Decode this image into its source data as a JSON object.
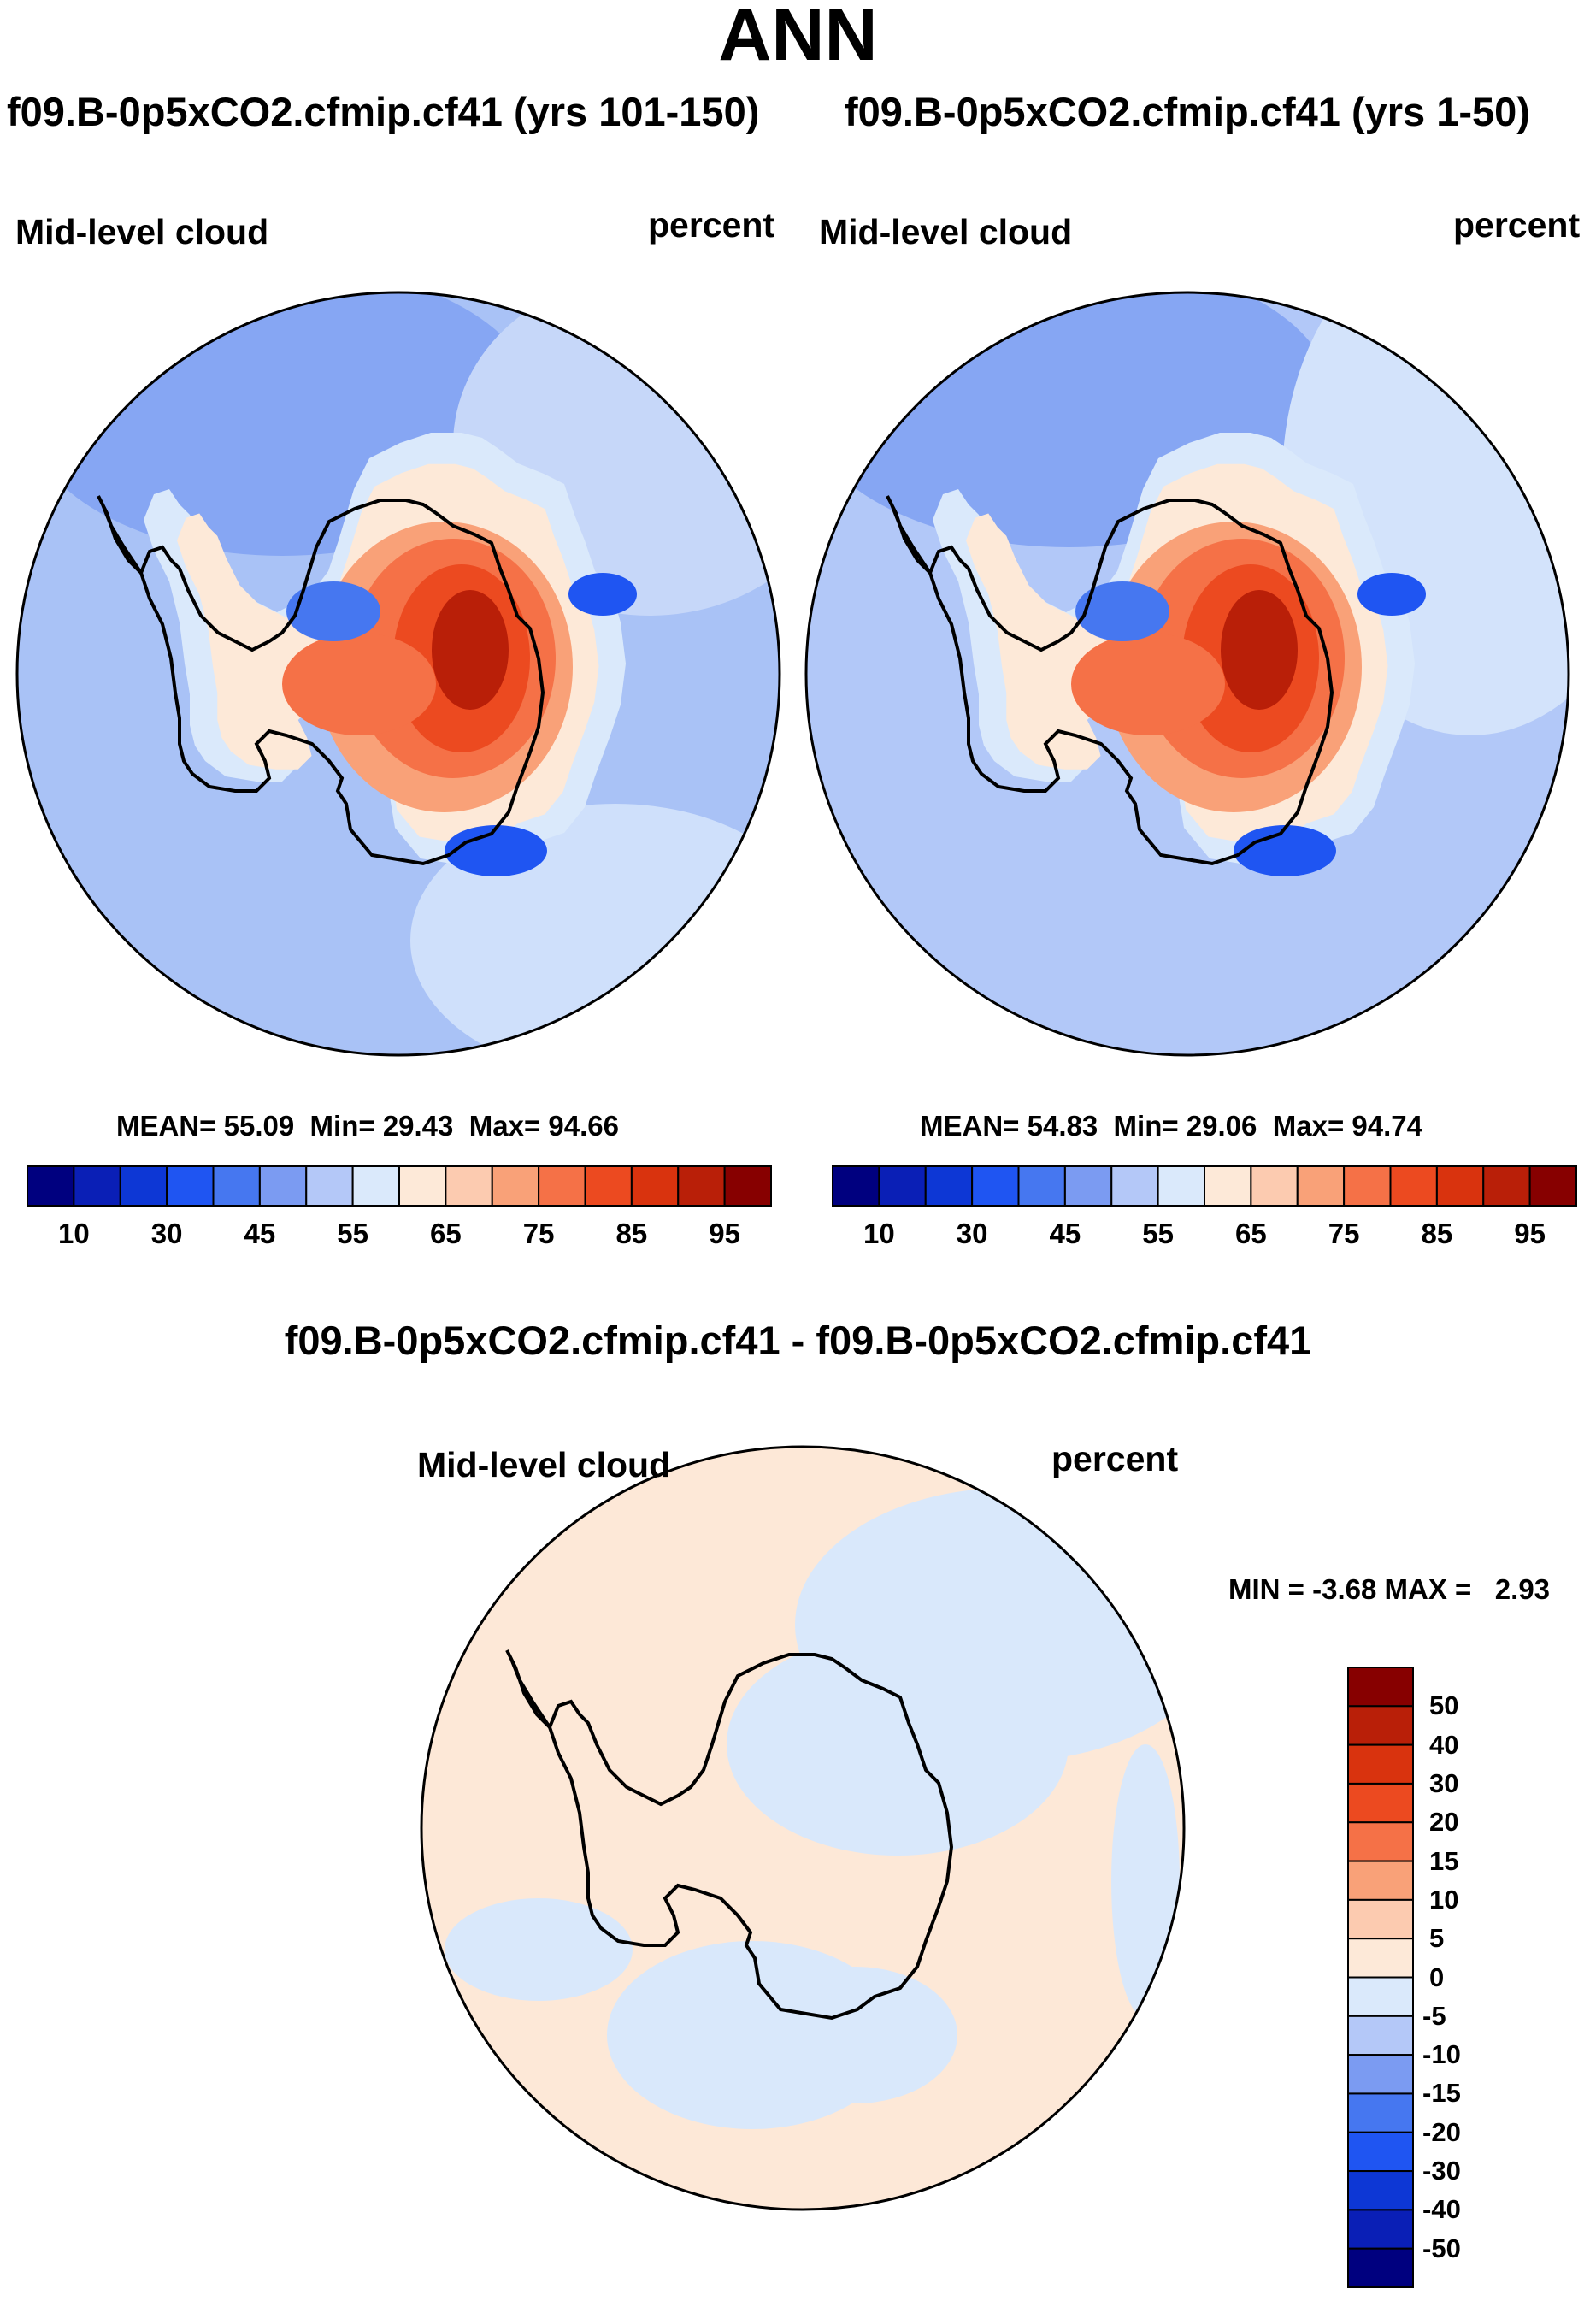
{
  "title": "ANN",
  "colors": {
    "abs_scale": [
      "#00007f",
      "#0a1fb6",
      "#0d37d5",
      "#1f55f2",
      "#4677f0",
      "#7b9bf2",
      "#b4c8f8",
      "#dae9fb",
      "#fde9d8",
      "#fccbb0",
      "#f9a178",
      "#f57147",
      "#ec4a20",
      "#d9330e",
      "#b91f08",
      "#870000"
    ],
    "diff_scale": [
      "#00007f",
      "#0a1fb6",
      "#0d37d5",
      "#1f55f2",
      "#4677f0",
      "#7b9bf2",
      "#b4c8f8",
      "#dae9fb",
      "#fde9d8",
      "#fccbb0",
      "#f9a178",
      "#f57147",
      "#ec4a20",
      "#d9330e",
      "#b91f08",
      "#870000"
    ],
    "ocean_left": "#a9c2f6",
    "ocean_right": "#b2c8f8",
    "diff_bg": "#fde8d7",
    "diff_patch": "#d9e8fb"
  },
  "chart_data": [
    {
      "type": "heatmap",
      "projection": "south-polar-stereographic",
      "title": "f09.B-0p5xCO2.cfmip.cf41 (yrs 101-150)",
      "variable": "Mid-level cloud",
      "units": "percent",
      "stats": {
        "mean_label": "MEAN=",
        "mean": "55.09",
        "min_label": "Min=",
        "min": "29.43",
        "max_label": "Max=",
        "max": "94.66"
      },
      "colorbar": {
        "orientation": "horizontal",
        "levels": [
          5,
          10,
          20,
          30,
          40,
          45,
          50,
          55,
          60,
          65,
          70,
          75,
          80,
          85,
          90,
          95
        ],
        "tick_labels": [
          "10",
          "30",
          "45",
          "55",
          "65",
          "75",
          "85",
          "95"
        ]
      }
    },
    {
      "type": "heatmap",
      "projection": "south-polar-stereographic",
      "title": "f09.B-0p5xCO2.cfmip.cf41 (yrs 1-50)",
      "variable": "Mid-level cloud",
      "units": "percent",
      "stats": {
        "mean_label": "MEAN=",
        "mean": "54.83",
        "min_label": "Min=",
        "min": "29.06",
        "max_label": "Max=",
        "max": "94.74"
      },
      "colorbar": {
        "orientation": "horizontal",
        "levels": [
          5,
          10,
          20,
          30,
          40,
          45,
          50,
          55,
          60,
          65,
          70,
          75,
          80,
          85,
          90,
          95
        ],
        "tick_labels": [
          "10",
          "30",
          "45",
          "55",
          "65",
          "75",
          "85",
          "95"
        ]
      }
    },
    {
      "type": "heatmap",
      "projection": "south-polar-stereographic",
      "title": "f09.B-0p5xCO2.cfmip.cf41 - f09.B-0p5xCO2.cfmip.cf41",
      "variable": "Mid-level cloud",
      "units": "percent",
      "stats": {
        "min_label": "MIN =",
        "min": "-3.68",
        "max_label": "MAX =",
        "max": "2.93"
      },
      "colorbar": {
        "orientation": "vertical",
        "tick_labels": [
          "50",
          "40",
          "30",
          "20",
          "15",
          "10",
          "5",
          "0",
          "-5",
          "-10",
          "-15",
          "-20",
          "-30",
          "-40",
          "-50"
        ]
      }
    }
  ]
}
